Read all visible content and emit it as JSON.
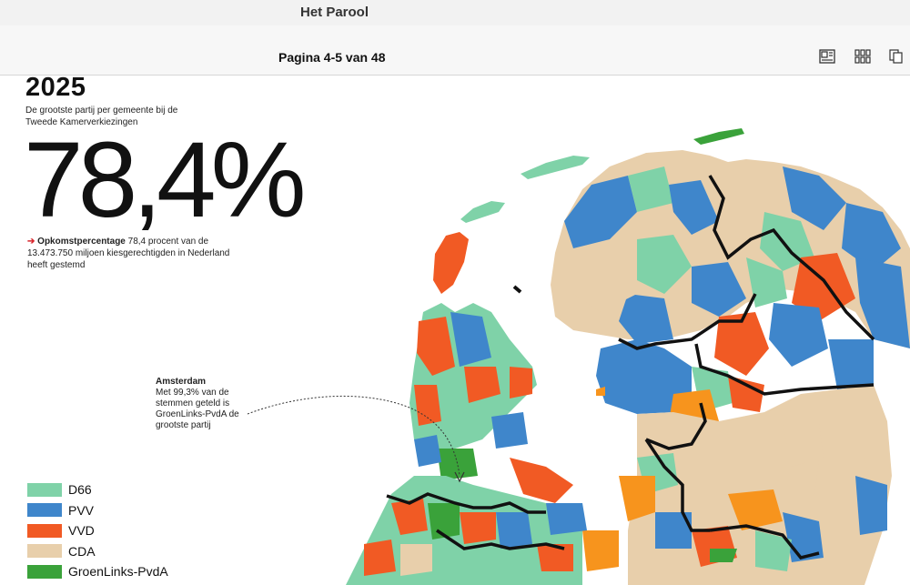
{
  "app": {
    "title": "Het Parool"
  },
  "toolbar": {
    "page_indicator": "Pagina 4-5 van 48",
    "buttons": [
      {
        "name": "single-page-view-icon"
      },
      {
        "name": "grid-view-icon"
      },
      {
        "name": "copy-pages-icon"
      }
    ]
  },
  "article": {
    "year": "2025",
    "subtitle": "De grootste partij per gemeente bij de Tweede Kamerverkiezingen",
    "big_percentage": "78,4%",
    "turnout_arrow": "➔",
    "turnout_label": "Opkomstpercentage",
    "turnout_text": " 78,4 procent van de 13.473.750 miljoen kiesgerechtigden in Nederland heeft gestemd",
    "annotation_title": "Amsterdam",
    "annotation_text": "Met 99,3% van de stemmen geteld is GroenLinks-PvdA de grootste partij"
  },
  "legend": [
    {
      "label": "D66",
      "color": "#7fd2a8"
    },
    {
      "label": "PVV",
      "color": "#3f86cb"
    },
    {
      "label": "VVD",
      "color": "#f15a24"
    },
    {
      "label": "CDA",
      "color": "#e8cfab"
    },
    {
      "label": "GroenLinks-PvdA",
      "color": "#3aa23a"
    }
  ],
  "map_colors": {
    "d66": "#7fd2a8",
    "pvv": "#3f86cb",
    "vvd": "#f15a24",
    "cda": "#e8cfab",
    "glpvda": "#3aa23a",
    "other": "#f7941d"
  }
}
